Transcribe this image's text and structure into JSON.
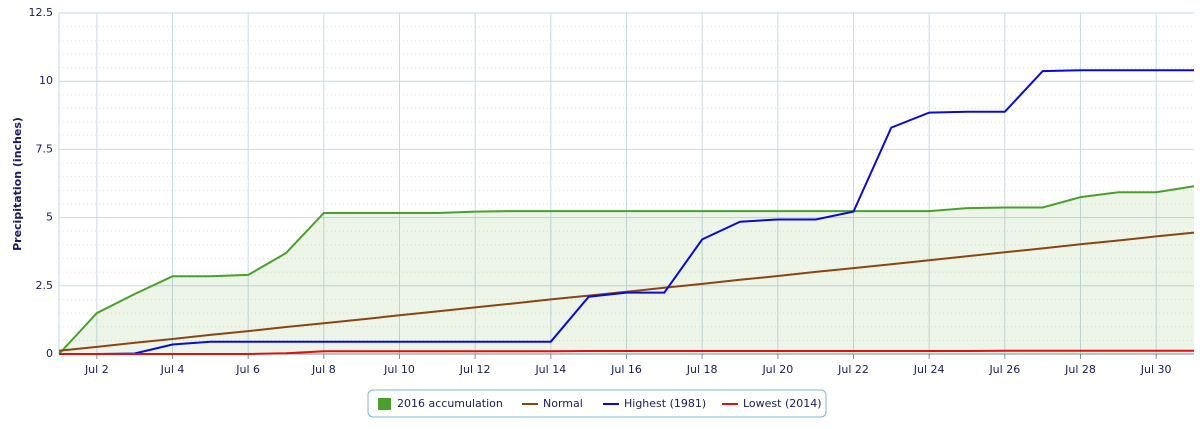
{
  "chart_data": {
    "type": "line",
    "y_label": "Precipitation (inches)",
    "categories": [
      null,
      "Jul 2",
      null,
      "Jul 4",
      null,
      "Jul 6",
      null,
      "Jul 8",
      null,
      "Jul 10",
      null,
      "Jul 12",
      null,
      "Jul 14",
      null,
      "Jul 16",
      null,
      "Jul 18",
      null,
      "Jul 20",
      null,
      "Jul 22",
      null,
      "Jul 24",
      null,
      "Jul 26",
      null,
      "Jul 28",
      null,
      "Jul 30",
      null
    ],
    "ylim": [
      0,
      12.5
    ],
    "yticks": [
      0,
      2.5,
      5,
      7.5,
      10,
      12.5
    ],
    "grid": true,
    "series": [
      {
        "name": "2016 accumulation",
        "color": "#4aa02c",
        "fill": true,
        "values": [
          0,
          1.5,
          2.2,
          2.85,
          2.85,
          2.9,
          3.7,
          5.17,
          5.17,
          5.17,
          5.17,
          5.22,
          5.24,
          5.24,
          5.24,
          5.24,
          5.24,
          5.24,
          5.24,
          5.24,
          5.24,
          5.24,
          5.24,
          5.24,
          5.35,
          5.37,
          5.37,
          5.75,
          5.93,
          5.93,
          6.15
        ]
      },
      {
        "name": "Normal",
        "color": "#8b4513",
        "values": [
          0.12,
          0.26,
          0.41,
          0.55,
          0.7,
          0.84,
          0.99,
          1.13,
          1.27,
          1.42,
          1.56,
          1.71,
          1.85,
          2.0,
          2.14,
          2.28,
          2.43,
          2.57,
          2.72,
          2.86,
          3.01,
          3.15,
          3.29,
          3.44,
          3.58,
          3.73,
          3.87,
          4.02,
          4.16,
          4.31,
          4.45
        ]
      },
      {
        "name": "Highest (1981)",
        "color": "#0a0ad8",
        "values": [
          0,
          0,
          0.02,
          0.35,
          0.45,
          0.45,
          0.45,
          0.45,
          0.45,
          0.45,
          0.45,
          0.45,
          0.45,
          0.45,
          2.1,
          2.25,
          2.25,
          4.2,
          4.85,
          4.93,
          4.93,
          5.22,
          8.3,
          8.85,
          8.88,
          8.88,
          10.37,
          10.4,
          10.4,
          10.4,
          10.4
        ]
      },
      {
        "name": "Lowest (2014)",
        "color": "#e01010",
        "values": [
          0,
          0,
          0,
          0,
          0,
          0,
          0.03,
          0.1,
          0.1,
          0.1,
          0.1,
          0.1,
          0.1,
          0.1,
          0.11,
          0.11,
          0.11,
          0.11,
          0.11,
          0.11,
          0.11,
          0.11,
          0.11,
          0.11,
          0.11,
          0.12,
          0.12,
          0.12,
          0.12,
          0.12,
          0.12
        ]
      }
    ]
  }
}
